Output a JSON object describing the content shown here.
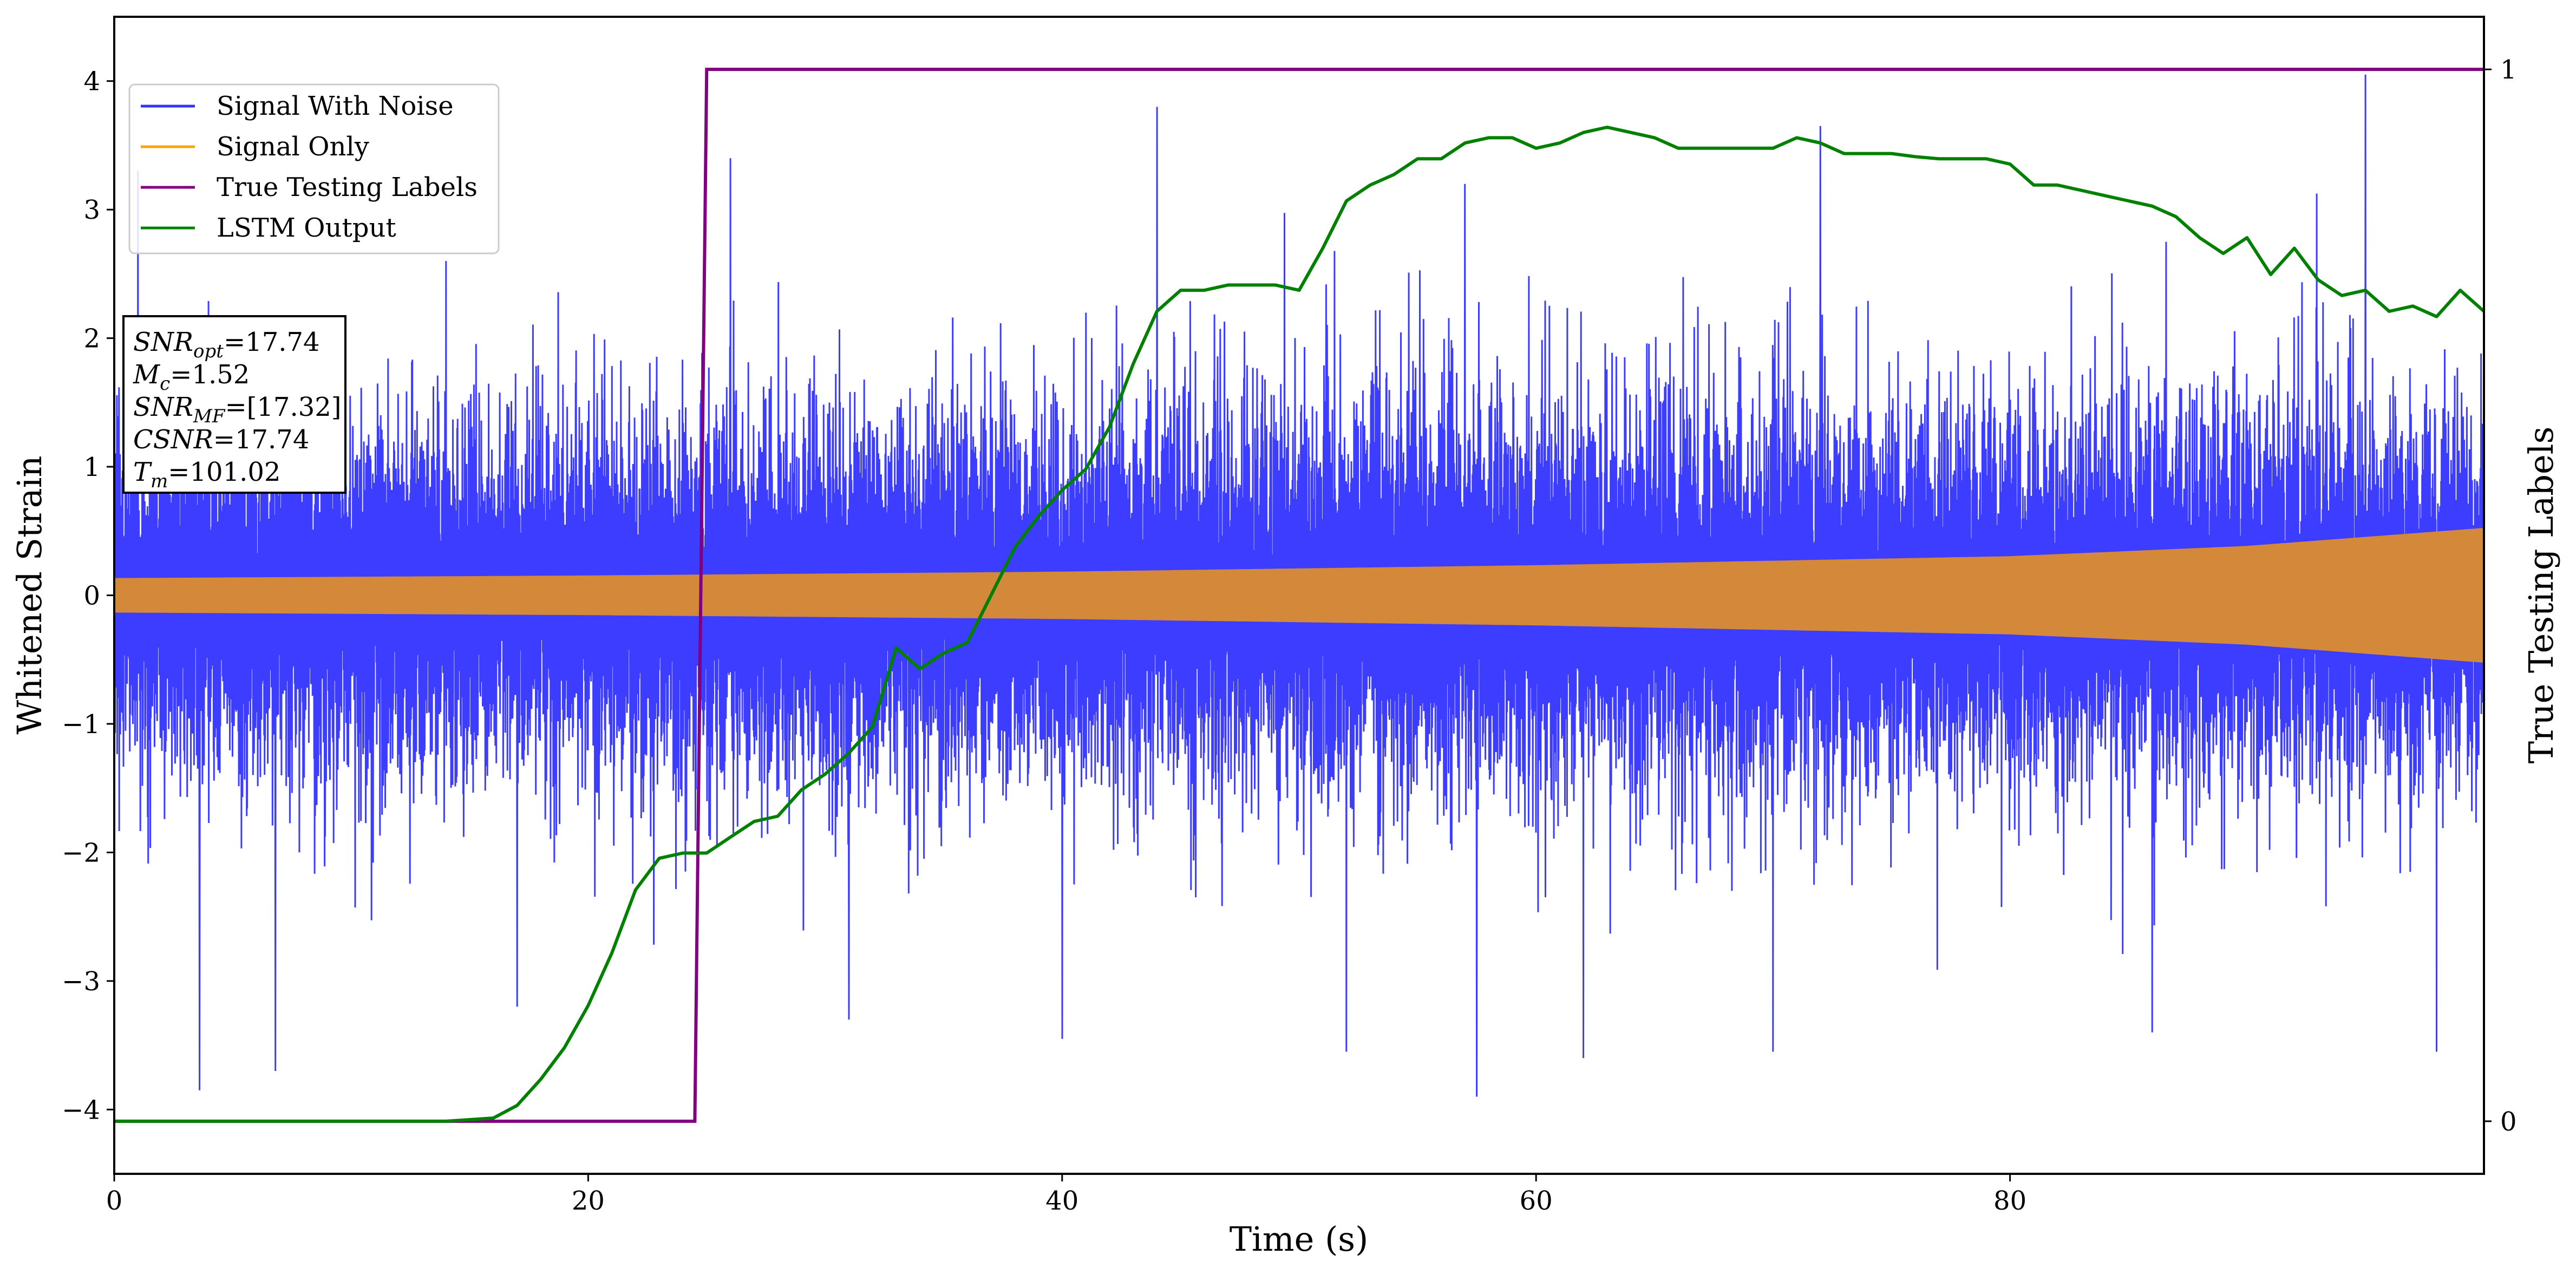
{
  "chart_data": {
    "type": "line",
    "xlabel": "Time (s)",
    "ylabel": "Whitened Strain",
    "y2label": "True Testing Labels",
    "xlim": [
      0,
      100
    ],
    "ylim": [
      -4.5,
      4.5
    ],
    "y2lim": [
      -0.05,
      1.05
    ],
    "x_ticks": [
      0,
      20,
      40,
      60,
      80
    ],
    "y_ticks": [
      -4,
      -3,
      -2,
      -1,
      0,
      1,
      2,
      3,
      4
    ],
    "y2_ticks": [
      0,
      1
    ],
    "x_tick_labels": [
      "0",
      "20",
      "40",
      "60",
      "80"
    ],
    "y_tick_labels": [
      "−4",
      "−3",
      "−2",
      "−1",
      "0",
      "1",
      "2",
      "3",
      "4"
    ],
    "y2_tick_labels": [
      "0",
      "1"
    ],
    "grid": false,
    "legend_position": "top-left",
    "legend": [
      "Signal With Noise",
      "Signal Only",
      "True Testing Labels",
      "LSTM Output"
    ],
    "colors": {
      "noise": "#3333ff",
      "signal": "#d4883a",
      "labels": "#800080",
      "lstm": "#008000"
    },
    "series": [
      {
        "name": "Signal With Noise",
        "axis": "left",
        "description_of_shape": "noisy oscillation",
        "noise_envelope": [
          [
            0,
            2.0
          ],
          [
            20,
            2.0
          ],
          [
            40,
            2.1
          ],
          [
            60,
            2.1
          ],
          [
            80,
            2.1
          ],
          [
            100,
            2.1
          ]
        ],
        "noise_peaks": [
          [
            1,
            3.3
          ],
          [
            3.6,
            -3.85
          ],
          [
            6.8,
            -3.7
          ],
          [
            14,
            2.6
          ],
          [
            17,
            -3.2
          ],
          [
            26,
            3.4
          ],
          [
            31,
            -3.3
          ],
          [
            40,
            -3.45
          ],
          [
            44,
            3.8
          ],
          [
            52,
            -3.55
          ],
          [
            57,
            3.2
          ],
          [
            57.5,
            -3.9
          ],
          [
            62,
            -3.6
          ],
          [
            70,
            -3.55
          ],
          [
            72,
            3.65
          ],
          [
            86,
            -3.4
          ],
          [
            95,
            4.05
          ],
          [
            98,
            -3.55
          ]
        ]
      },
      {
        "name": "Signal Only",
        "axis": "left",
        "amplitude_envelope": [
          [
            0,
            0.13
          ],
          [
            20,
            0.15
          ],
          [
            40,
            0.18
          ],
          [
            60,
            0.23
          ],
          [
            80,
            0.3
          ],
          [
            90,
            0.38
          ],
          [
            100,
            0.52
          ]
        ]
      },
      {
        "name": "True Testing Labels",
        "axis": "right",
        "x": [
          0,
          24.5,
          25.0,
          100
        ],
        "y": [
          0,
          0,
          1,
          1
        ]
      },
      {
        "name": "LSTM Output",
        "axis": "right",
        "x": [
          0,
          14,
          16,
          17,
          18,
          19,
          20,
          21,
          22,
          23,
          24,
          25,
          26,
          27,
          28,
          29,
          30,
          31,
          32,
          33,
          34,
          35,
          36,
          37,
          38,
          39,
          40,
          41,
          42,
          43,
          44,
          45,
          46,
          47,
          48,
          49,
          50,
          51,
          52,
          53,
          54,
          55,
          56,
          57,
          58,
          59,
          60,
          61,
          62,
          63,
          64,
          65,
          66,
          67,
          68,
          69,
          70,
          71,
          72,
          73,
          74,
          75,
          76,
          77,
          78,
          79,
          80,
          81,
          82,
          83,
          84,
          85,
          86,
          87,
          88,
          89,
          90,
          91,
          92,
          93,
          94,
          95,
          96,
          97,
          98,
          99,
          100
        ],
        "y": [
          0,
          0,
          0.003,
          0.015,
          0.04,
          0.07,
          0.11,
          0.16,
          0.22,
          0.25,
          0.255,
          0.255,
          0.27,
          0.285,
          0.29,
          0.315,
          0.33,
          0.35,
          0.375,
          0.45,
          0.43,
          0.445,
          0.455,
          0.5,
          0.545,
          0.575,
          0.6,
          0.62,
          0.66,
          0.72,
          0.77,
          0.79,
          0.79,
          0.795,
          0.795,
          0.795,
          0.79,
          0.83,
          0.875,
          0.89,
          0.9,
          0.915,
          0.915,
          0.93,
          0.935,
          0.935,
          0.925,
          0.93,
          0.94,
          0.945,
          0.94,
          0.935,
          0.925,
          0.925,
          0.925,
          0.925,
          0.925,
          0.935,
          0.93,
          0.92,
          0.92,
          0.92,
          0.917,
          0.915,
          0.915,
          0.915,
          0.91,
          0.89,
          0.89,
          0.885,
          0.88,
          0.875,
          0.87,
          0.86,
          0.84,
          0.825,
          0.84,
          0.805,
          0.83,
          0.8,
          0.785,
          0.79,
          0.77,
          0.775,
          0.765,
          0.79,
          0.77
        ]
      }
    ],
    "annotation": {
      "lines": [
        {
          "label": "SNR",
          "sub": "opt",
          "value": "=17.74"
        },
        {
          "label": "M",
          "sub": "c",
          "value": "=1.52"
        },
        {
          "label": "SNR",
          "sub": "MF",
          "value": "=[17.32]"
        },
        {
          "label": "CSNR",
          "sub": "",
          "value": "=17.74"
        },
        {
          "label": "T",
          "sub": "m",
          "value": "=101.02"
        }
      ]
    }
  }
}
